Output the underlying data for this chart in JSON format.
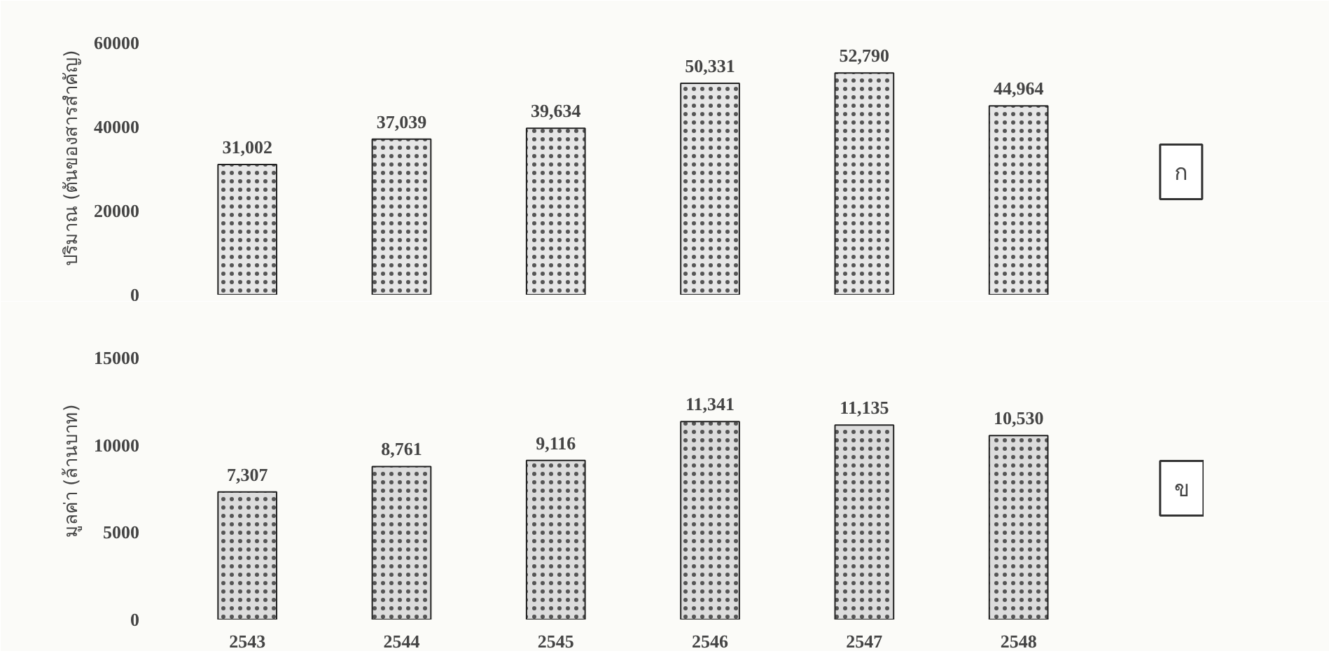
{
  "chart_data": [
    {
      "type": "bar",
      "ylabel": "ปริมาณ (ตันของสารสำคัญ)",
      "categories": [
        "2543",
        "2544",
        "2545",
        "2546",
        "2547",
        "2548"
      ],
      "values": [
        31002,
        37039,
        39634,
        50331,
        52790,
        44964
      ],
      "value_labels": [
        "31,002",
        "37,039",
        "39,634",
        "50,331",
        "52,790",
        "44,964"
      ],
      "color": "#e6e6e6",
      "ylim": [
        0,
        65000
      ],
      "yticks": [
        0,
        20000,
        40000,
        60000
      ],
      "tick_labels": "y",
      "grid": false,
      "annotations": [
        "ก"
      ]
    },
    {
      "type": "bar",
      "ylabel": "มูลค่า (ล้านบาท)",
      "categories": [
        "2543",
        "2544",
        "2545",
        "2546",
        "2547",
        "2548"
      ],
      "values": [
        7307,
        8761,
        9116,
        11341,
        11135,
        10530
      ],
      "value_labels": [
        "7,307",
        "8,761",
        "9,116",
        "11,341",
        "11,135",
        "10,530"
      ],
      "color": "#dcdcdc",
      "ylim": [
        0,
        17000
      ],
      "yticks": [
        0,
        5000,
        10000,
        15000
      ],
      "grid": false,
      "annotations": [
        "ข"
      ]
    }
  ]
}
